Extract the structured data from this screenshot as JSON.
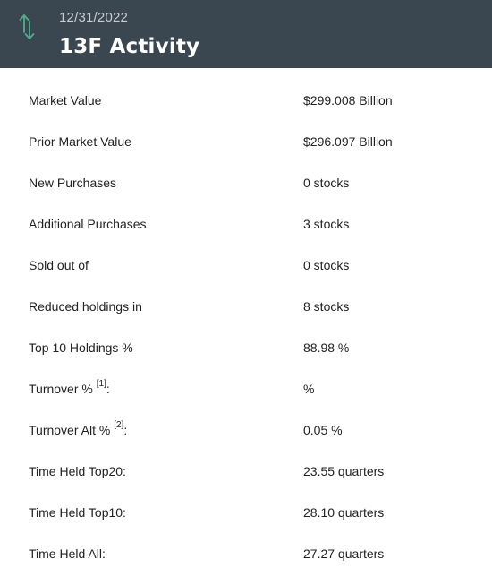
{
  "header": {
    "date": "12/31/2022",
    "title": "13F Activity",
    "icon": "up-down-arrows-icon",
    "icon_color": "#4fae8c",
    "background": "#3a4750"
  },
  "rows": [
    {
      "label": "Market Value",
      "value": "$299.008 Billion"
    },
    {
      "label": "Prior Market Value",
      "value": "$296.097 Billion"
    },
    {
      "label": "New Purchases",
      "value": "0 stocks"
    },
    {
      "label": "Additional Purchases",
      "value": "3 stocks"
    },
    {
      "label": "Sold out of",
      "value": "0 stocks"
    },
    {
      "label": "Reduced holdings in",
      "value": "8 stocks"
    },
    {
      "label": "Top 10 Holdings %",
      "value": "88.98 %"
    },
    {
      "label": "Turnover %",
      "sup": "[1]",
      "suffix": ":",
      "value": "%"
    },
    {
      "label": "Turnover Alt %",
      "sup": "[2]",
      "suffix": ":",
      "value": "0.05 %"
    },
    {
      "label": "Time Held Top20:",
      "value": "23.55 quarters"
    },
    {
      "label": "Time Held Top10:",
      "value": "28.10 quarters"
    },
    {
      "label": "Time Held All:",
      "value": "27.27 quarters"
    }
  ]
}
